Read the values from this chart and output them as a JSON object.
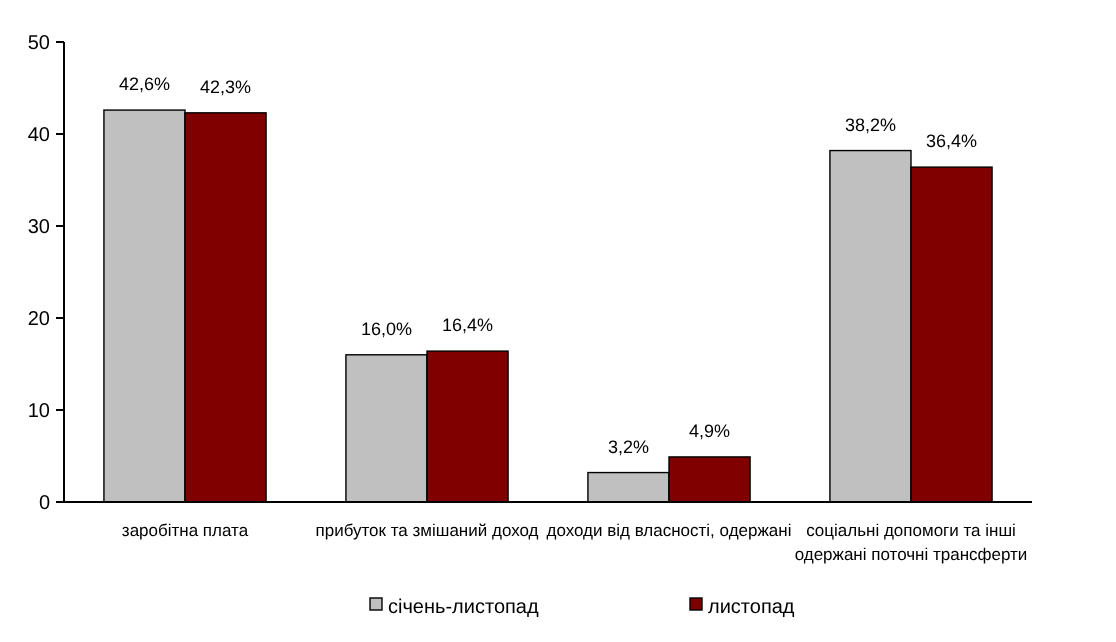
{
  "chart_data": {
    "type": "bar",
    "categories": [
      "заробітна плата",
      "прибуток та змішаний доход",
      "доходи від власності, одержані",
      "соціальні допомоги та інші одержані поточні трансферти"
    ],
    "series": [
      {
        "name": "січень-листопад",
        "color": "#c0c0c0",
        "values": [
          42.6,
          16.0,
          3.2,
          38.2
        ],
        "value_labels": [
          "42,6%",
          "16,0%",
          "3,2%",
          "38,2%"
        ]
      },
      {
        "name": "листопад",
        "color": "#800000",
        "values": [
          42.3,
          16.4,
          4.9,
          36.4
        ],
        "value_labels": [
          "42,3%",
          "16,4%",
          "4,9%",
          "36,4%"
        ]
      }
    ],
    "ylim": [
      0,
      50
    ],
    "yticks": [
      0,
      10,
      20,
      30,
      40,
      50
    ],
    "grid": false,
    "legend": "bottom"
  }
}
